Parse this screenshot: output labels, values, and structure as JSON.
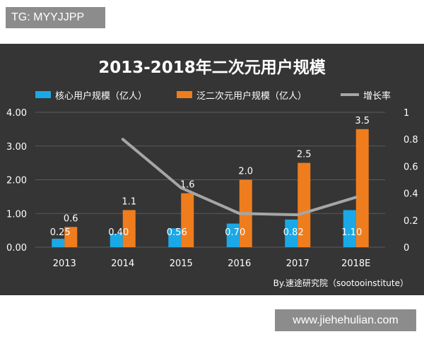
{
  "top_tag": "TG: MYYJJPP",
  "watermark": "www.jiehehulian.com",
  "colors": {
    "background": "#353535",
    "core": "#1aa9e6",
    "pan": "#ef7d1d",
    "growth": "#a6a6a6",
    "text": "#ffffff"
  },
  "chart_data": {
    "type": "bar",
    "title": "2013-2018年二次元用户规模",
    "categories": [
      "2013",
      "2014",
      "2015",
      "2016",
      "2017",
      "2018E"
    ],
    "series": [
      {
        "name": "核心用户规模（亿人）",
        "type": "bar",
        "axis": "left",
        "color": "#1aa9e6",
        "values": [
          0.25,
          0.4,
          0.56,
          0.7,
          0.82,
          1.1
        ],
        "labels": [
          "0.25",
          "0.40",
          "0.56",
          "0.70",
          "0.82",
          "1.10"
        ]
      },
      {
        "name": "泛二次元用户规模（亿人）",
        "type": "bar",
        "axis": "left",
        "color": "#ef7d1d",
        "values": [
          0.6,
          1.1,
          1.6,
          2.0,
          2.5,
          3.5
        ],
        "labels": [
          "0.6",
          "1.1",
          "1.6",
          "2.0",
          "2.5",
          "3.5"
        ]
      },
      {
        "name": "增长率",
        "type": "line",
        "axis": "right",
        "color": "#a6a6a6",
        "values": [
          null,
          0.8,
          0.44,
          0.25,
          0.24,
          0.37
        ]
      }
    ],
    "ylim": [
      0,
      4
    ],
    "yticks": [
      "0.00",
      "1.00",
      "2.00",
      "3.00",
      "4.00"
    ],
    "y2lim": [
      0,
      1
    ],
    "y2ticks": [
      "0",
      "0.2",
      "0.4",
      "0.6",
      "0.8",
      "1"
    ],
    "legend_position": "top",
    "grid": true,
    "source": "By.速途研究院（sootooinstitute）"
  }
}
